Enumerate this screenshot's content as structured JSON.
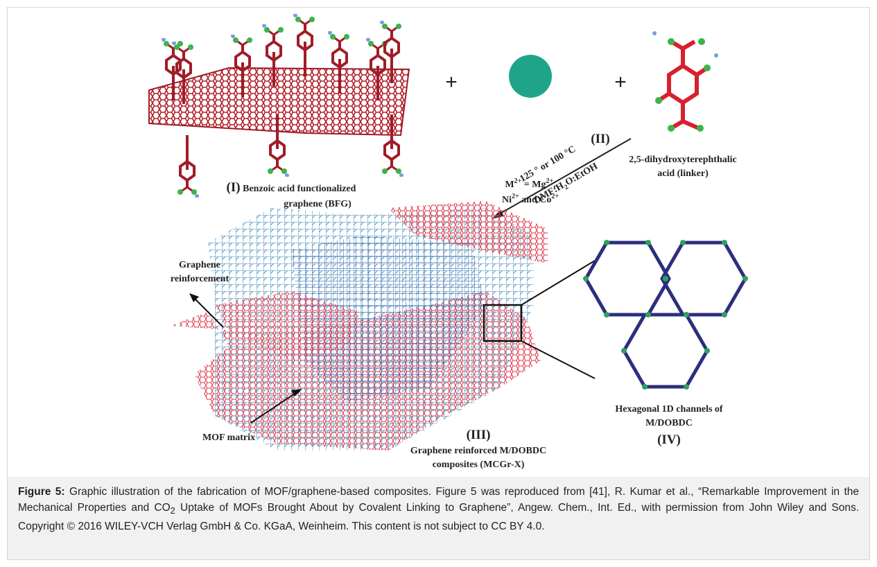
{
  "figure": {
    "labels": {
      "bfg": {
        "number": "(I)",
        "text": [
          "Benzoic acid functionalized",
          "graphene (BFG)"
        ]
      },
      "metal": {
        "lines": [
          [
            "M",
            "2+",
            " = Mg",
            "2+",
            ","
          ],
          [
            "Ni",
            "2+",
            " and Co",
            "2+"
          ]
        ]
      },
      "plus": [
        "+",
        "+"
      ],
      "step": {
        "number": "(II)",
        "temperature": "125 ° or 100 °C",
        "solvent": [
          "DMF:H",
          "2",
          "O:EtOH"
        ]
      },
      "linker": [
        "2,5-dihydroxyterephthalic",
        "acid (linker)"
      ],
      "graphene": [
        "Graphene",
        "reinforcement"
      ],
      "mof": "MOF matrix",
      "composite": {
        "number": "(III)",
        "text": [
          "Graphene reinforced M/DOBDC",
          "composites (MCGr-X)"
        ]
      },
      "channels": {
        "text": [
          "Hexagonal 1D channels of",
          "M/DOBDC"
        ],
        "number": "(IV)"
      }
    }
  },
  "caption": {
    "label": "Figure 5:",
    "text": [
      "Graphic illustration of the fabrication of MOF/graphene-based composites. Figure 5 was reproduced from [41], R. Kumar et al., “Remarkable Improvement in the Mechanical Properties and CO",
      "2",
      " Uptake of MOFs Brought About by Covalent Linking to Graphene”, Angew. Chem., Int. Ed., with permission from John Wiley and Sons. Copyright © 2016 WILEY-VCH Verlag GmbH & Co. KGaA, Weinheim. This content is not subject to CC BY 4.0."
    ]
  }
}
